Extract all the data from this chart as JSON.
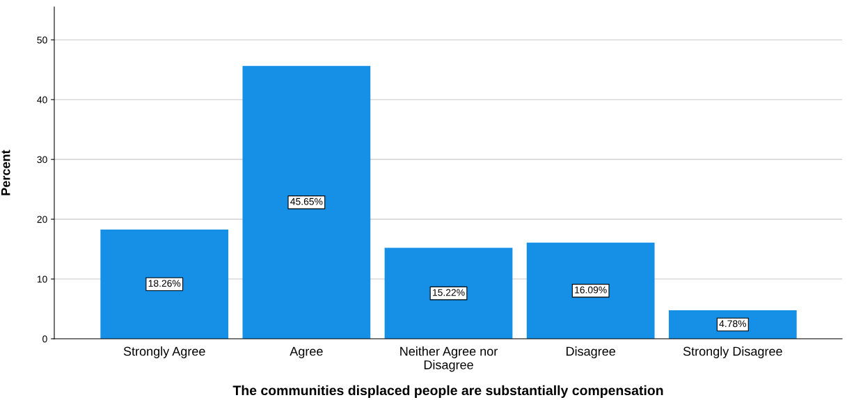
{
  "chart_data": {
    "type": "bar",
    "xlabel": "The communities displaced people are substantially compensation",
    "ylabel": "Percent",
    "categories": [
      "Strongly Agree",
      "Agree",
      "Neither Agree nor\nDisagree",
      "Disagree",
      "Strongly Disagree"
    ],
    "values": [
      18.26,
      45.65,
      15.22,
      16.09,
      4.78
    ],
    "value_labels": [
      "18.26%",
      "45.65%",
      "15.22%",
      "16.09%",
      "4.78%"
    ],
    "color": "#1590e6",
    "ylim": [
      0,
      55.5
    ],
    "yticks": [
      0,
      10,
      20,
      30,
      40,
      50
    ],
    "grid": "y",
    "legend": false
  }
}
